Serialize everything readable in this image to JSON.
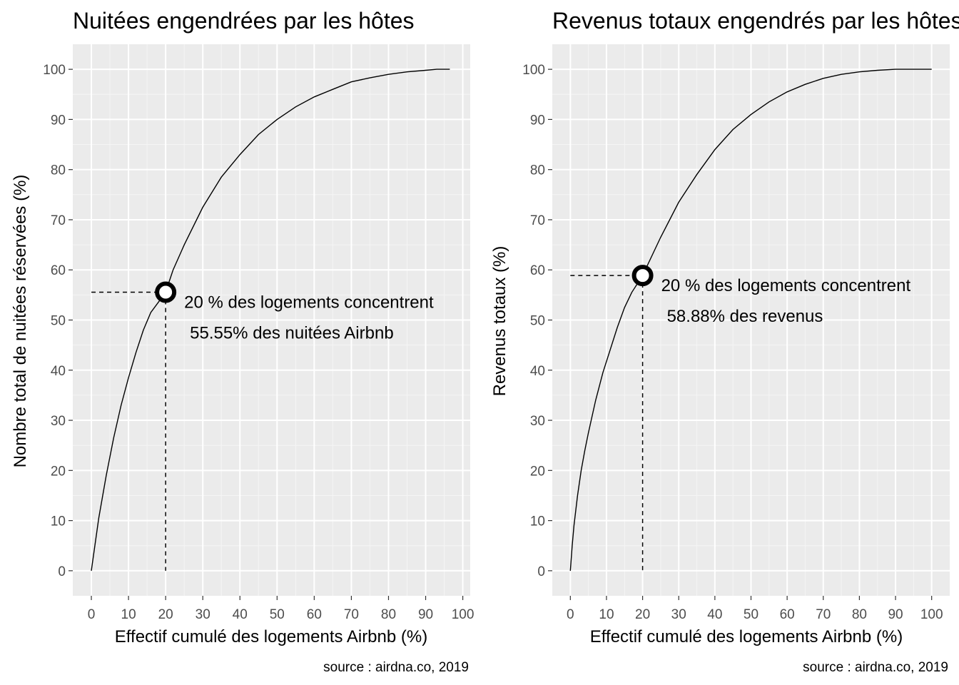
{
  "source_caption": "source : airdna.co, 2019",
  "chart_data": [
    {
      "type": "line",
      "title": "Nuitées engendrées par les hôtes",
      "xlabel": "Effectif cumulé des logements Airbnb (%)",
      "ylabel": "Nombre total de nuitées réservées (%)",
      "xlim": [
        -5,
        102
      ],
      "ylim": [
        -5,
        105
      ],
      "x_ticks": [
        0,
        10,
        20,
        30,
        40,
        50,
        60,
        70,
        80,
        90,
        100
      ],
      "y_ticks": [
        0,
        10,
        20,
        30,
        40,
        50,
        60,
        70,
        80,
        90,
        100
      ],
      "grid": true,
      "x": [
        0,
        2,
        4,
        6,
        8,
        10,
        12,
        14,
        16,
        18,
        20,
        22,
        25,
        30,
        35,
        40,
        45,
        50,
        55,
        60,
        65,
        70,
        75,
        80,
        85,
        90,
        93,
        96.5
      ],
      "y": [
        0,
        10.5,
        19,
        26.5,
        33,
        38.5,
        43.5,
        48,
        51.5,
        53.5,
        55.55,
        60,
        65,
        72.5,
        78.5,
        83,
        87,
        90,
        92.5,
        94.5,
        96,
        97.5,
        98.3,
        99,
        99.5,
        99.8,
        100,
        100
      ],
      "highlight": {
        "x": 20,
        "y": 55.55
      },
      "annotation_line1": "20 % des logements concentrent",
      "annotation_line2": "55.55% des nuitées Airbnb"
    },
    {
      "type": "line",
      "title": "Revenus totaux engendrés par les hôtes",
      "xlabel": "Effectif cumulé des logements Airbnb (%)",
      "ylabel": "Revenus totaux (%)",
      "xlim": [
        -5,
        105
      ],
      "ylim": [
        -5,
        105
      ],
      "x_ticks": [
        0,
        10,
        20,
        30,
        40,
        50,
        60,
        70,
        80,
        90,
        100
      ],
      "y_ticks": [
        0,
        10,
        20,
        30,
        40,
        50,
        60,
        70,
        80,
        90,
        100
      ],
      "grid": true,
      "x": [
        0,
        0.5,
        1,
        2,
        3,
        4,
        5,
        7,
        9,
        11,
        13,
        15,
        17,
        20,
        25,
        30,
        35,
        40,
        45,
        50,
        55,
        60,
        65,
        70,
        75,
        80,
        85,
        90,
        95,
        100
      ],
      "y": [
        0,
        5,
        9,
        15,
        20,
        24,
        27.5,
        34,
        39.5,
        44,
        48.5,
        52.5,
        55.5,
        58.88,
        66.5,
        73.5,
        79,
        84,
        88,
        91,
        93.5,
        95.5,
        97,
        98.2,
        99,
        99.5,
        99.8,
        100,
        100,
        100
      ],
      "highlight": {
        "x": 20,
        "y": 58.88
      },
      "annotation_line1": "20 % des logements concentrent",
      "annotation_line2": "58.88% des revenus"
    }
  ]
}
